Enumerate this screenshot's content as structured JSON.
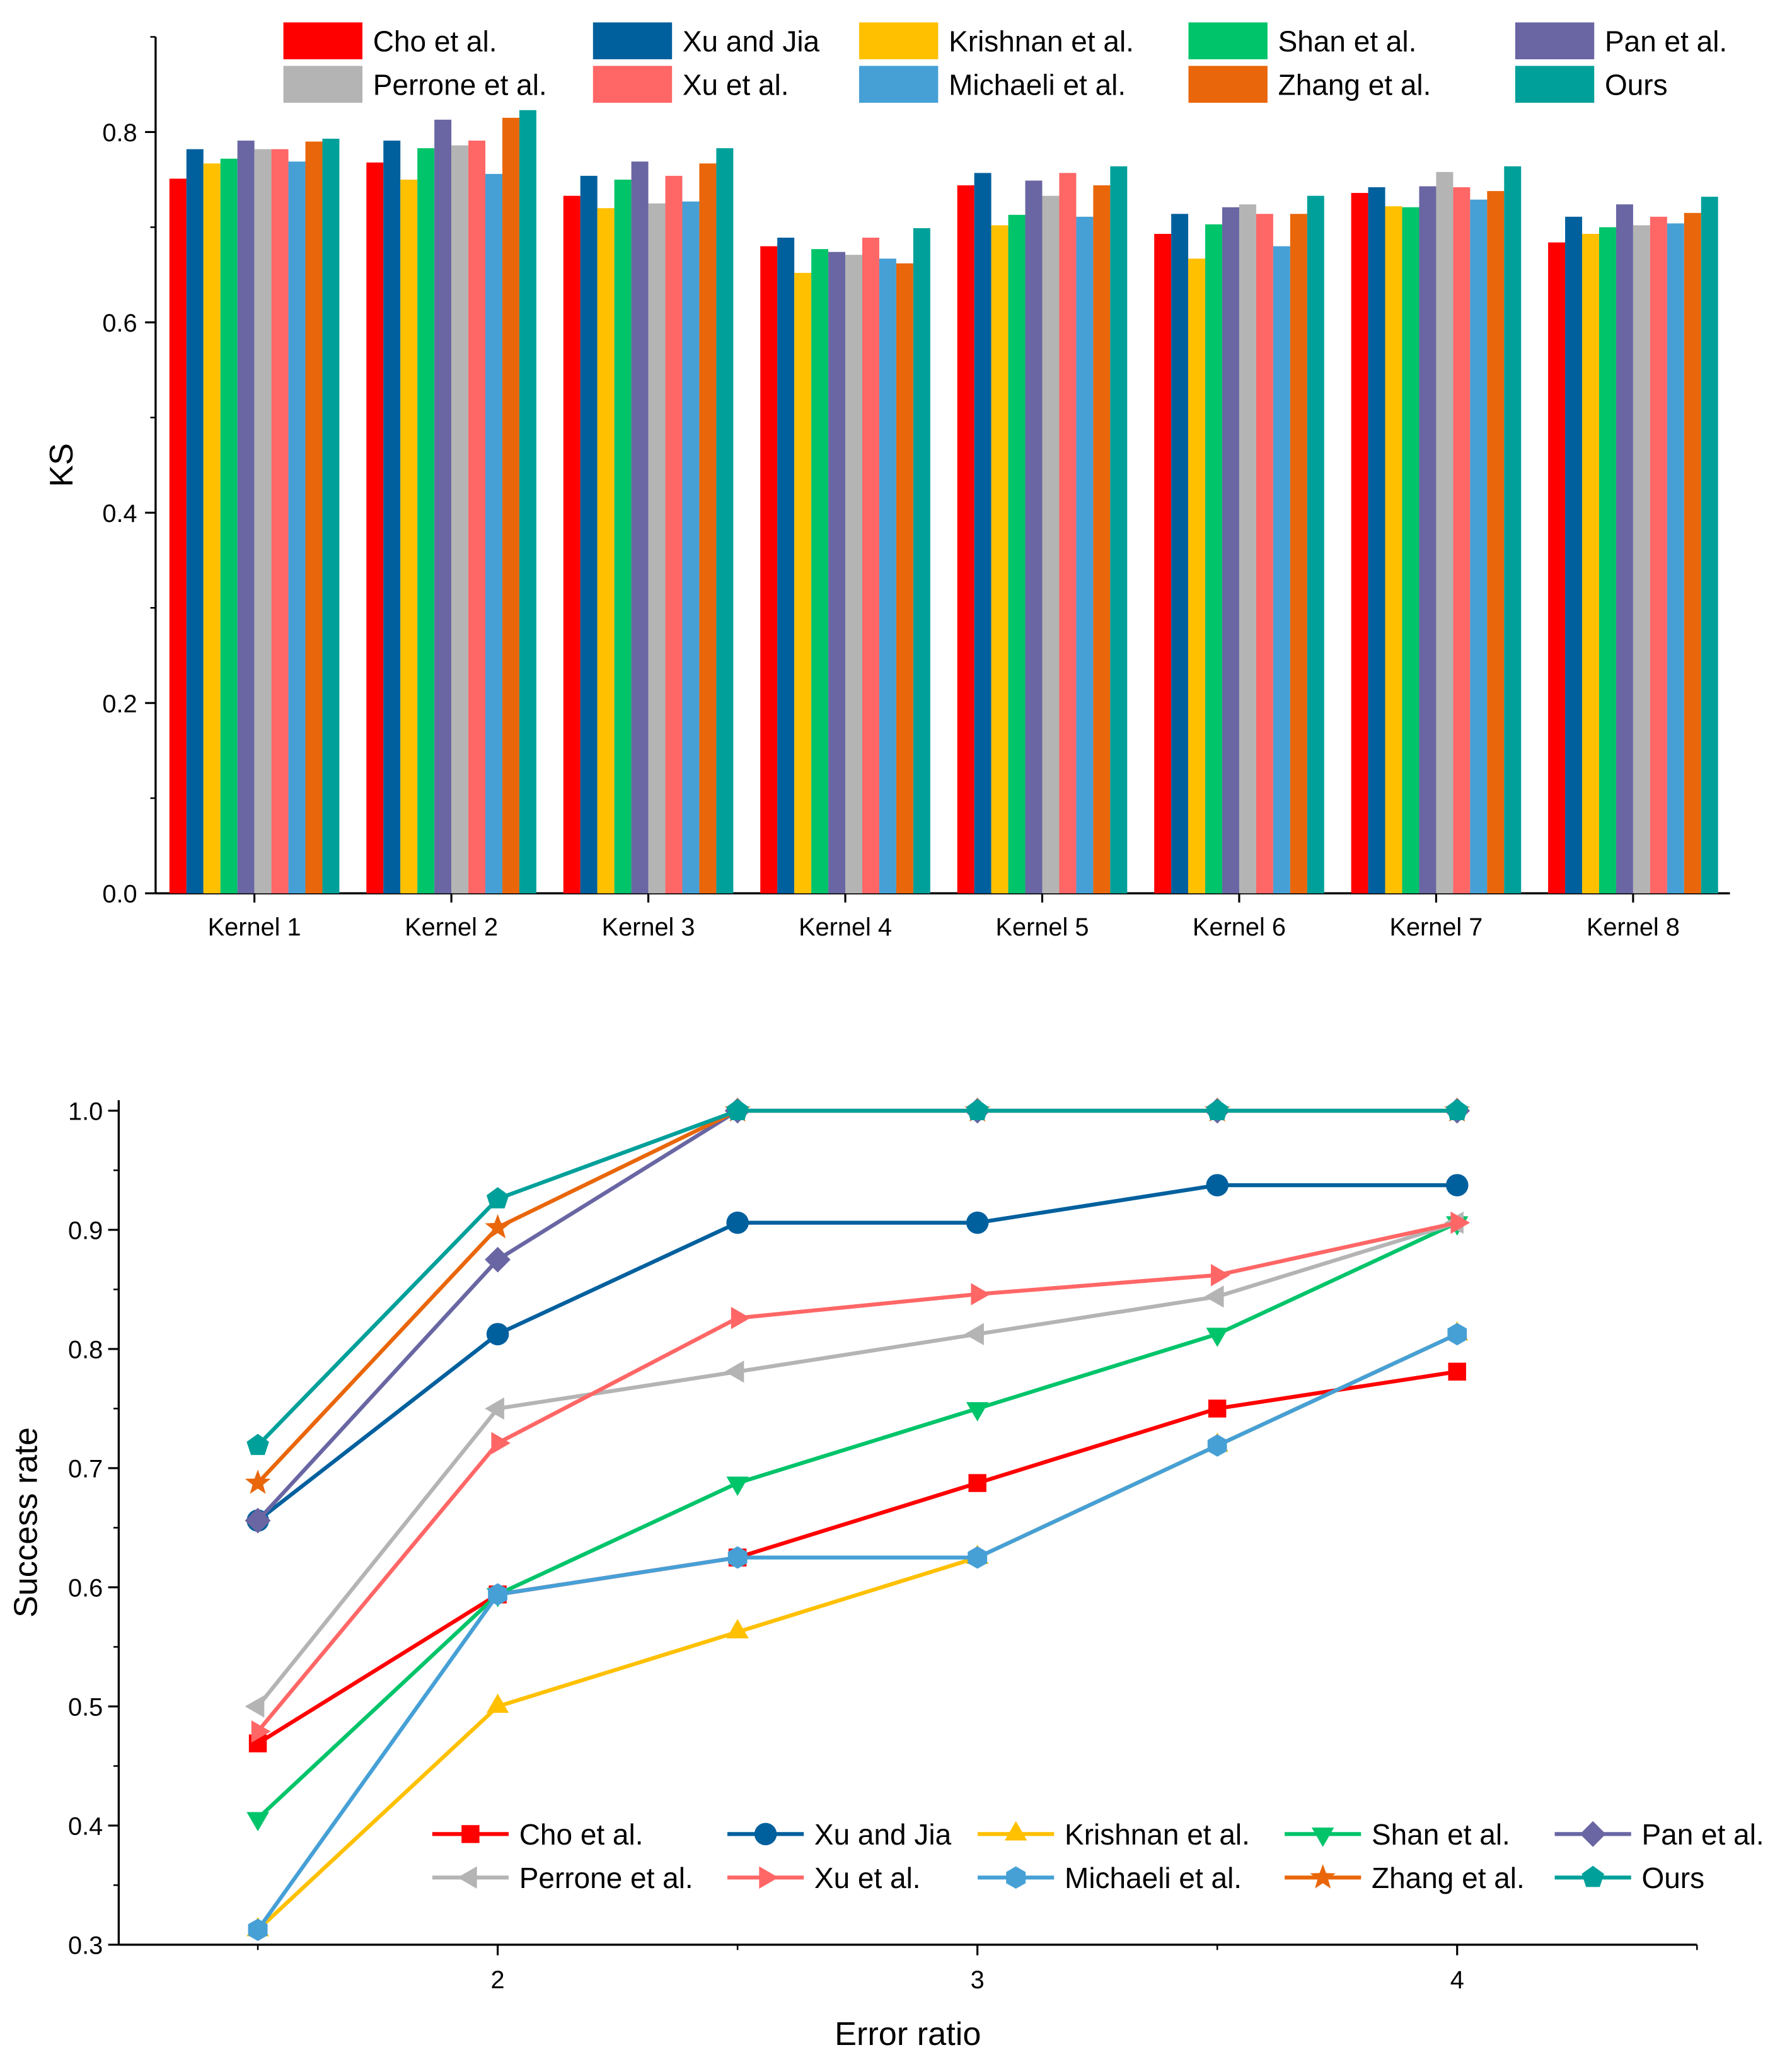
{
  "colors": {
    "Cho et al.": "#FF0000",
    "Xu and Jia": "#00609E",
    "Krishnan et al.": "#FFC000",
    "Shan et al.": "#00C46A",
    "Pan et al.": "#6966A3",
    "Perrone et al.": "#B4B4B4",
    "Xu et al.": "#FF6666",
    "Michaeli et al.": "#46A0D6",
    "Zhang et al.": "#E9660A",
    "Ours": "#00A09A"
  },
  "chart_data": [
    {
      "type": "bar",
      "title": "",
      "xlabel": "",
      "ylabel": "KS",
      "ylim": [
        0,
        0.9
      ],
      "yticks": [
        "0.0",
        "0.2",
        "0.4",
        "0.6",
        "0.8"
      ],
      "legend_position": "top",
      "categories": [
        "Kernel 1",
        "Kernel 2",
        "Kernel 3",
        "Kernel 4",
        "Kernel 5",
        "Kernel 6",
        "Kernel 7",
        "Kernel 8"
      ],
      "series": [
        {
          "name": "Cho et al.",
          "values": [
            0.751,
            0.768,
            0.733,
            0.68,
            0.744,
            0.693,
            0.736,
            0.684
          ]
        },
        {
          "name": "Xu and Jia",
          "values": [
            0.782,
            0.791,
            0.754,
            0.689,
            0.757,
            0.714,
            0.742,
            0.711
          ]
        },
        {
          "name": "Krishnan et al.",
          "values": [
            0.767,
            0.75,
            0.72,
            0.652,
            0.702,
            0.667,
            0.722,
            0.693
          ]
        },
        {
          "name": "Shan et al.",
          "values": [
            0.772,
            0.783,
            0.75,
            0.677,
            0.713,
            0.703,
            0.721,
            0.7
          ]
        },
        {
          "name": "Pan et al.",
          "values": [
            0.791,
            0.813,
            0.769,
            0.674,
            0.749,
            0.721,
            0.743,
            0.724
          ]
        },
        {
          "name": "Perrone et al.",
          "values": [
            0.782,
            0.786,
            0.725,
            0.671,
            0.733,
            0.724,
            0.758,
            0.702
          ]
        },
        {
          "name": "Xu et al.",
          "values": [
            0.782,
            0.791,
            0.754,
            0.689,
            0.757,
            0.714,
            0.742,
            0.711
          ]
        },
        {
          "name": "Michaeli et al.",
          "values": [
            0.769,
            0.756,
            0.727,
            0.667,
            0.711,
            0.68,
            0.729,
            0.704
          ]
        },
        {
          "name": "Zhang et al.",
          "values": [
            0.79,
            0.815,
            0.767,
            0.662,
            0.744,
            0.714,
            0.738,
            0.715
          ]
        },
        {
          "name": "Ours",
          "values": [
            0.793,
            0.823,
            0.783,
            0.699,
            0.764,
            0.733,
            0.764,
            0.732
          ]
        }
      ]
    },
    {
      "type": "line",
      "title": "",
      "xlabel": "Error ratio",
      "ylabel": "Success rate",
      "xlim": [
        1.21,
        4.5
      ],
      "ylim": [
        0.3,
        1.0
      ],
      "xticks": [
        "2",
        "3",
        "4"
      ],
      "yticks": [
        "0.3",
        "0.4",
        "0.5",
        "0.6",
        "0.7",
        "0.8",
        "0.9",
        "1.0"
      ],
      "legend_position": "bottom-right",
      "x": [
        1.5,
        2,
        2.5,
        3,
        3.5,
        4
      ],
      "series": [
        {
          "name": "Cho et al.",
          "marker": "square",
          "values": [
            0.469,
            0.594,
            0.625,
            0.6875,
            0.75,
            0.781
          ]
        },
        {
          "name": "Xu and Jia",
          "marker": "circle",
          "values": [
            0.656,
            0.8125,
            0.906,
            0.906,
            0.9375,
            0.9375
          ]
        },
        {
          "name": "Krishnan et al.",
          "marker": "triangle-up",
          "values": [
            0.3125,
            0.5,
            0.5625,
            0.625,
            0.719,
            0.8125
          ]
        },
        {
          "name": "Shan et al.",
          "marker": "triangle-down",
          "values": [
            0.406,
            0.594,
            0.6875,
            0.75,
            0.8125,
            0.906
          ]
        },
        {
          "name": "Pan et al.",
          "marker": "diamond",
          "values": [
            0.656,
            0.875,
            1.0,
            1.0,
            1.0,
            1.0
          ]
        },
        {
          "name": "Perrone et al.",
          "marker": "triangle-left",
          "values": [
            0.5,
            0.75,
            0.781,
            0.8125,
            0.844,
            0.906
          ]
        },
        {
          "name": "Xu et al.",
          "marker": "triangle-right",
          "values": [
            0.479,
            0.721,
            0.826,
            0.846,
            0.862,
            0.906
          ]
        },
        {
          "name": "Michaeli et al.",
          "marker": "hexagon",
          "values": [
            0.3125,
            0.594,
            0.625,
            0.625,
            0.719,
            0.8125
          ]
        },
        {
          "name": "Zhang et al.",
          "marker": "star",
          "values": [
            0.6875,
            0.902,
            1.0,
            1.0,
            1.0,
            1.0
          ]
        },
        {
          "name": "Ours",
          "marker": "pentagon",
          "values": [
            0.719,
            0.926,
            1.0,
            1.0,
            1.0,
            1.0
          ]
        }
      ]
    }
  ]
}
